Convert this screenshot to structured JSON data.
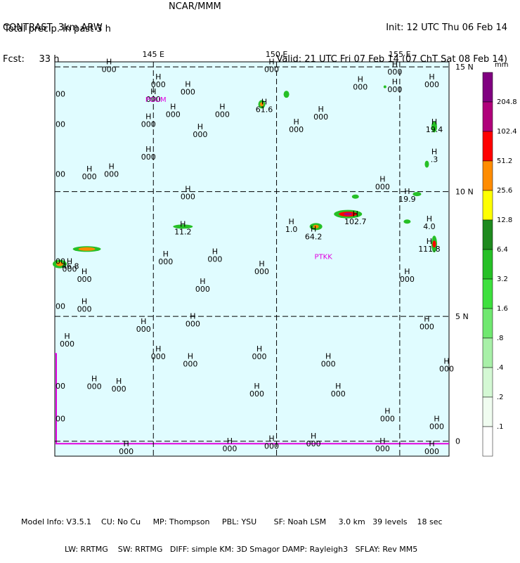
{
  "header": {
    "left_lines": [
      "CONTRAST  3km ARW",
      "Fcst:     33 h"
    ],
    "center": "NCAR/MMM",
    "right_lines": [
      "Init: 12 UTC Thu 06 Feb 14",
      "Valid: 21 UTC Fri 07 Feb 14 (07 ChT Sat 08 Feb 14)"
    ],
    "subtitle": "Total precip. in past 3 h"
  },
  "map": {
    "longitude_labels": [
      "145 E",
      "150 E",
      "155 E"
    ],
    "latitude_labels": [
      "15 N",
      "10 N",
      "5 N",
      "0"
    ],
    "longitudes_deg": [
      145,
      150,
      155
    ],
    "latitudes_deg": [
      15,
      10,
      5,
      0
    ],
    "extent": {
      "lon_min": 141,
      "lon_max": 157,
      "lat_min": -0.6,
      "lat_max": 15.2
    },
    "stations": [
      {
        "id": "PGUM",
        "lon": 145.1,
        "lat": 13.6
      },
      {
        "id": "PTKK",
        "lon": 151.9,
        "lat": 7.3
      }
    ],
    "markers": [
      {
        "label": "H",
        "value": "000",
        "lon": 143.2,
        "lat": 15.1
      },
      {
        "label": "H",
        "value": "000",
        "lon": 145.2,
        "lat": 14.5
      },
      {
        "label": "H",
        "value": "000",
        "lon": 146.4,
        "lat": 14.2
      },
      {
        "label": "H",
        "value": "000",
        "lon": 145.0,
        "lat": 13.9
      },
      {
        "label": "H",
        "value": "000",
        "lon": 149.8,
        "lat": 15.1
      },
      {
        "label": "H",
        "value": "000",
        "lon": 153.4,
        "lat": 14.4
      },
      {
        "label": "H",
        "value": "000",
        "lon": 154.8,
        "lat": 15.0
      },
      {
        "label": "H",
        "value": "000",
        "lon": 154.8,
        "lat": 14.3
      },
      {
        "label": "H",
        "value": "000",
        "lon": 156.3,
        "lat": 14.5
      },
      {
        "label": "H",
        "value": "61.6",
        "lon": 149.5,
        "lat": 13.5
      },
      {
        "label": "H",
        "value": "000",
        "lon": 145.8,
        "lat": 13.3
      },
      {
        "label": "H",
        "value": "000",
        "lon": 147.8,
        "lat": 13.3
      },
      {
        "label": "H",
        "value": "000",
        "lon": 146.9,
        "lat": 12.5
      },
      {
        "label": "H",
        "value": "000",
        "lon": 144.8,
        "lat": 12.9
      },
      {
        "label": "H",
        "value": "000",
        "lon": 151.8,
        "lat": 13.2
      },
      {
        "label": "H",
        "value": "000",
        "lon": 150.8,
        "lat": 12.7
      },
      {
        "label": "H",
        "value": "19.4",
        "lon": 156.4,
        "lat": 12.7
      },
      {
        "label": "H",
        "value": "000",
        "lon": 144.8,
        "lat": 11.6
      },
      {
        "label": "H",
        "value": ".3",
        "lon": 156.4,
        "lat": 11.5
      },
      {
        "label": "H",
        "value": "000",
        "lon": 142.4,
        "lat": 10.8
      },
      {
        "label": "H",
        "value": "000",
        "lon": 143.3,
        "lat": 10.9
      },
      {
        "label": "H",
        "value": "000",
        "lon": 154.3,
        "lat": 10.4
      },
      {
        "label": "H",
        "value": "000",
        "lon": 146.4,
        "lat": 10.0
      },
      {
        "label": "H",
        "value": "19.9",
        "lon": 155.3,
        "lat": 9.9
      },
      {
        "label": "H",
        "value": "11.2",
        "lon": 146.2,
        "lat": 8.6
      },
      {
        "label": "H",
        "value": "1.0",
        "lon": 150.6,
        "lat": 8.7
      },
      {
        "label": "H",
        "value": "64.2",
        "lon": 151.5,
        "lat": 8.4
      },
      {
        "label": "H",
        "value": "102.7",
        "lon": 153.2,
        "lat": 9.0
      },
      {
        "label": "H",
        "value": "4.0",
        "lon": 156.2,
        "lat": 8.8
      },
      {
        "label": "H",
        "value": "111.8",
        "lon": 156.2,
        "lat": 7.9
      },
      {
        "label": "H",
        "value": "000",
        "lon": 145.5,
        "lat": 7.4
      },
      {
        "label": "H",
        "value": "000",
        "lon": 147.5,
        "lat": 7.5
      },
      {
        "label": "H",
        "value": "000",
        "lon": 141.6,
        "lat": 7.1
      },
      {
        "label": "H",
        "value": "000",
        "lon": 142.2,
        "lat": 6.7
      },
      {
        "label": "H",
        "value": "000",
        "lon": 149.4,
        "lat": 7.0
      },
      {
        "label": "H",
        "value": "000",
        "lon": 155.3,
        "lat": 6.7
      },
      {
        "label": "H",
        "value": "000",
        "lon": 147.0,
        "lat": 6.3
      },
      {
        "label": "H",
        "value": "000",
        "lon": 142.2,
        "lat": 5.5
      },
      {
        "label": "H",
        "value": "000",
        "lon": 144.6,
        "lat": 4.7
      },
      {
        "label": "H",
        "value": "000",
        "lon": 146.6,
        "lat": 4.9
      },
      {
        "label": "H",
        "value": "000",
        "lon": 156.1,
        "lat": 4.8
      },
      {
        "label": "H",
        "value": "000",
        "lon": 141.5,
        "lat": 4.1
      },
      {
        "label": "H",
        "value": "000",
        "lon": 145.2,
        "lat": 3.6
      },
      {
        "label": "H",
        "value": "000",
        "lon": 146.5,
        "lat": 3.3
      },
      {
        "label": "H",
        "value": "000",
        "lon": 149.3,
        "lat": 3.6
      },
      {
        "label": "H",
        "value": "000",
        "lon": 152.1,
        "lat": 3.3
      },
      {
        "label": "H",
        "value": "000",
        "lon": 156.9,
        "lat": 3.1
      },
      {
        "label": "H",
        "value": "000",
        "lon": 142.6,
        "lat": 2.4
      },
      {
        "label": "H",
        "value": "000",
        "lon": 143.6,
        "lat": 2.3
      },
      {
        "label": "H",
        "value": "000",
        "lon": 149.2,
        "lat": 2.1
      },
      {
        "label": "H",
        "value": "000",
        "lon": 152.5,
        "lat": 2.1
      },
      {
        "label": "H",
        "value": "000",
        "lon": 154.5,
        "lat": 1.1
      },
      {
        "label": "H",
        "value": "000",
        "lon": 156.5,
        "lat": 0.8
      },
      {
        "label": "H",
        "value": "000",
        "lon": 143.9,
        "lat": -0.2
      },
      {
        "label": "H",
        "value": "000",
        "lon": 148.1,
        "lat": -0.1
      },
      {
        "label": "H",
        "value": "000",
        "lon": 149.8,
        "lat": 0.0
      },
      {
        "label": "H",
        "value": "000",
        "lon": 151.5,
        "lat": 0.1
      },
      {
        "label": "H",
        "value": "000",
        "lon": 154.3,
        "lat": -0.1
      },
      {
        "label": "H",
        "value": "000",
        "lon": 156.3,
        "lat": -0.2
      }
    ],
    "edge_values": [
      "00",
      "00",
      "00",
      "00",
      "00",
      "00",
      "00"
    ],
    "edge_value_lats": [
      12.6,
      10.6,
      5.3,
      2.1,
      0.8,
      7.1,
      13.8
    ],
    "lower_left_value": "46.8",
    "lower_left_lat": 6.9
  },
  "legend": {
    "unit": "mm",
    "levels": [
      {
        "label": "204.8",
        "color": "#800080"
      },
      {
        "label": "102.4",
        "color": "#b0007a"
      },
      {
        "label": "51.2",
        "color": "#ff0000"
      },
      {
        "label": "25.6",
        "color": "#ff8c00"
      },
      {
        "label": "12.8",
        "color": "#ffff00"
      },
      {
        "label": "6.4",
        "color": "#1e8a1e"
      },
      {
        "label": "3.2",
        "color": "#26c026"
      },
      {
        "label": "1.6",
        "color": "#3ee03e"
      },
      {
        "label": ".8",
        "color": "#70e870"
      },
      {
        "label": ".4",
        "color": "#a8f0a8"
      },
      {
        "label": ".2",
        "color": "#d4f8d4"
      },
      {
        "label": ".1",
        "color": "#f0fcf0"
      },
      {
        "label": "",
        "color": "#ffffff"
      }
    ]
  },
  "colors": {
    "ocean": "#e0fcff",
    "grid": "#000000",
    "station": "#e000e0",
    "coast": "#e000e0"
  },
  "footer": {
    "line1": "Model Info: V3.5.1    CU: No Cu     MP: Thompson     PBL: YSU       SF: Noah LSM     3.0 km   39 levels    18 sec",
    "line2": "LW: RRTMG    SW: RRTMG   DIFF: simple KM: 3D Smagor DAMP: Rayleigh3   SFLAY: Rev MM5"
  }
}
